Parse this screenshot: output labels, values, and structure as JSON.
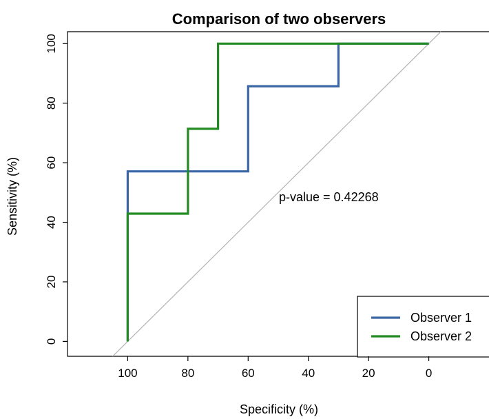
{
  "chart_data": {
    "type": "line",
    "title": "Comparison of two observers",
    "xlabel": "Specificity (%)",
    "ylabel": "Sensitivity (%)",
    "xlim": [
      120,
      -20
    ],
    "ylim": [
      -5,
      104
    ],
    "x_reversed": true,
    "x_ticks": [
      100,
      80,
      60,
      40,
      20,
      0
    ],
    "y_ticks": [
      0,
      20,
      40,
      60,
      80,
      100
    ],
    "grid": false,
    "legend_position": "bottom-right",
    "annotation": "p-value = 0.42268",
    "reference_line": {
      "color": "#b3b3b3",
      "points": [
        [
          100,
          0
        ],
        [
          0,
          100
        ]
      ]
    },
    "series": [
      {
        "name": "Observer 1",
        "color": "#3a66a6",
        "points": [
          [
            100,
            0
          ],
          [
            100,
            57.1
          ],
          [
            60,
            57.1
          ],
          [
            60,
            85.7
          ],
          [
            30,
            85.7
          ],
          [
            30,
            100
          ],
          [
            0,
            100
          ]
        ]
      },
      {
        "name": "Observer 2",
        "color": "#228b22",
        "points": [
          [
            100,
            0
          ],
          [
            100,
            42.9
          ],
          [
            80,
            42.9
          ],
          [
            80,
            71.4
          ],
          [
            70,
            71.4
          ],
          [
            70,
            100
          ],
          [
            0,
            100
          ]
        ]
      }
    ]
  }
}
